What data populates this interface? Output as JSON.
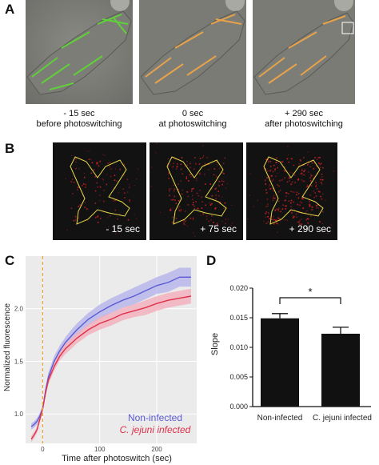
{
  "panels": {
    "a": {
      "letter": "A",
      "captions": [
        {
          "line1": "- 15 sec",
          "line2": "before photoswitching"
        },
        {
          "line1": "0 sec",
          "line2": "at photoswitching"
        },
        {
          "line1": "+ 290 sec",
          "line2": "after photoswitching"
        }
      ],
      "colors": {
        "green": "#5fd03a",
        "orange": "#e7a24a"
      }
    },
    "b": {
      "letter": "B",
      "time_labels": [
        "- 15 sec",
        "+ 75 sec",
        "+ 290 sec"
      ],
      "colors": {
        "outline": "#e6d84a",
        "signal": "#d9202a"
      }
    },
    "c": {
      "letter": "C",
      "ylabel": "Normalized fluorescence",
      "xlabel": "Time after photoswitch (sec)",
      "legend": [
        "Non-infected",
        "C. jejuni infected"
      ]
    },
    "d": {
      "letter": "D",
      "ylabel": "Slope",
      "categories": [
        "Non-infected",
        "C. jejuni infected"
      ],
      "significance": "*"
    }
  },
  "chart_data": [
    {
      "type": "line",
      "x": [
        -20,
        -15,
        -10,
        -5,
        0,
        5,
        10,
        20,
        30,
        40,
        50,
        60,
        80,
        100,
        120,
        140,
        160,
        180,
        200,
        220,
        240,
        260
      ],
      "series": [
        {
          "name": "Non-infected",
          "color": "#5b5bd6",
          "band": "#b8b6ea",
          "values": [
            0.88,
            0.9,
            0.93,
            0.98,
            1.05,
            1.22,
            1.35,
            1.5,
            1.6,
            1.68,
            1.74,
            1.8,
            1.9,
            1.97,
            2.03,
            2.08,
            2.12,
            2.17,
            2.22,
            2.25,
            2.3,
            2.3
          ],
          "band_halfwidth": [
            0.03,
            0.03,
            0.03,
            0.03,
            0.03,
            0.04,
            0.04,
            0.05,
            0.05,
            0.05,
            0.06,
            0.06,
            0.06,
            0.07,
            0.07,
            0.07,
            0.08,
            0.08,
            0.08,
            0.09,
            0.09,
            0.09
          ]
        },
        {
          "name": "C. jejuni infected",
          "color": "#e0304a",
          "band": "#f2b2bd",
          "values": [
            0.76,
            0.8,
            0.85,
            0.95,
            1.05,
            1.2,
            1.32,
            1.45,
            1.55,
            1.62,
            1.67,
            1.72,
            1.8,
            1.86,
            1.9,
            1.95,
            1.98,
            2.01,
            2.05,
            2.08,
            2.1,
            2.12
          ],
          "band_halfwidth": [
            0.03,
            0.03,
            0.03,
            0.03,
            0.03,
            0.03,
            0.04,
            0.04,
            0.04,
            0.05,
            0.05,
            0.05,
            0.05,
            0.06,
            0.06,
            0.06,
            0.06,
            0.07,
            0.07,
            0.07,
            0.07,
            0.07
          ]
        }
      ],
      "xlim": [
        -30,
        270
      ],
      "ylim": [
        0.72,
        2.5
      ],
      "xticks": [
        0,
        100,
        200
      ],
      "yticks": [
        1.0,
        1.5,
        2.0
      ],
      "vline_x": 0,
      "vline_color": "#f0a030",
      "background": "#ebebeb",
      "grid": true
    },
    {
      "type": "bar",
      "categories": [
        "Non-infected",
        "C. jejuni infected"
      ],
      "values": [
        0.0149,
        0.0123
      ],
      "error": [
        0.0008,
        0.0011
      ],
      "ylim": [
        0,
        0.02
      ],
      "yticks": [
        "0.000",
        "0.005",
        "0.010",
        "0.015",
        "0.020"
      ],
      "bar_color": "#111111",
      "significance": "*"
    }
  ]
}
